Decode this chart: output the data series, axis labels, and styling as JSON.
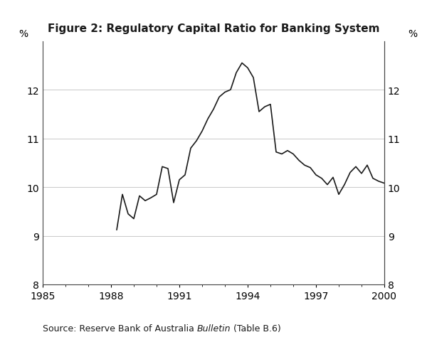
{
  "title": "Figure 2: Regulatory Capital Ratio for Banking System",
  "ylabel_left": "%",
  "ylabel_right": "%",
  "xlim": [
    1985,
    2000
  ],
  "ylim": [
    8,
    13
  ],
  "yticks": [
    8,
    9,
    10,
    11,
    12
  ],
  "xticks": [
    1985,
    1988,
    1991,
    1994,
    1997,
    2000
  ],
  "background_color": "#ffffff",
  "line_color": "#1a1a1a",
  "grid_color": "#c8c8c8",
  "x": [
    1988.25,
    1988.5,
    1988.75,
    1989.0,
    1989.25,
    1989.5,
    1989.75,
    1990.0,
    1990.25,
    1990.5,
    1990.75,
    1991.0,
    1991.25,
    1991.5,
    1991.75,
    1992.0,
    1992.25,
    1992.5,
    1992.75,
    1993.0,
    1993.25,
    1993.5,
    1993.75,
    1994.0,
    1994.25,
    1994.5,
    1994.75,
    1995.0,
    1995.25,
    1995.5,
    1995.75,
    1996.0,
    1996.25,
    1996.5,
    1996.75,
    1997.0,
    1997.25,
    1997.5,
    1997.75,
    1998.0,
    1998.25,
    1998.5,
    1998.75,
    1999.0,
    1999.25,
    1999.5,
    1999.75,
    2000.0
  ],
  "y": [
    9.12,
    9.85,
    9.45,
    9.35,
    9.82,
    9.72,
    9.78,
    9.85,
    10.42,
    10.38,
    9.68,
    10.15,
    10.25,
    10.8,
    10.95,
    11.15,
    11.4,
    11.6,
    11.85,
    11.95,
    12.0,
    12.35,
    12.55,
    12.45,
    12.25,
    11.55,
    11.65,
    11.7,
    10.72,
    10.68,
    10.75,
    10.68,
    10.55,
    10.45,
    10.4,
    10.25,
    10.18,
    10.05,
    10.2,
    9.85,
    10.05,
    10.3,
    10.42,
    10.28,
    10.45,
    10.18,
    10.12,
    10.08
  ],
  "title_fontsize": 11,
  "tick_fontsize": 10,
  "source_fontsize": 9
}
